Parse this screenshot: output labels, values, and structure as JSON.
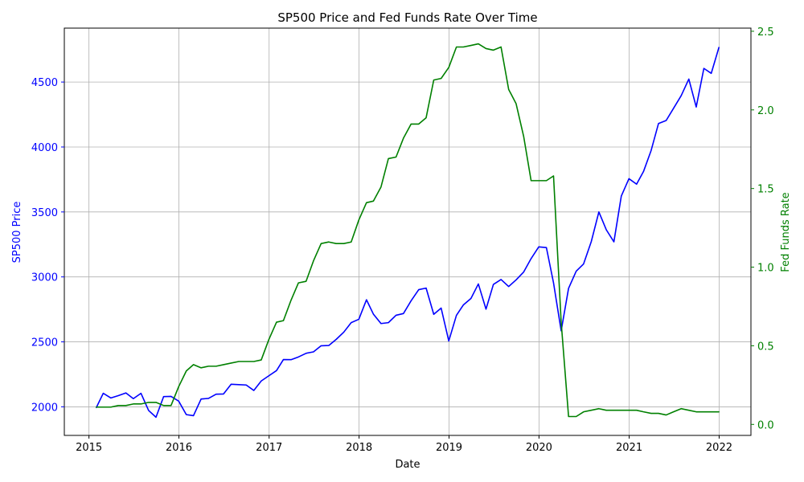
{
  "chart_data": {
    "type": "line",
    "title": "SP500 Price and Fed Funds Rate Over Time",
    "xlabel": "Date",
    "ylabel_left": "SP500 Price",
    "ylabel_right": "Fed Funds Rate",
    "xlim": [
      "2014-09-23",
      "2022-05-10"
    ],
    "ylim_left": [
      1780,
      4915
    ],
    "ylim_right": [
      -0.07,
      2.52
    ],
    "x_ticks": [
      "2015",
      "2016",
      "2017",
      "2018",
      "2019",
      "2020",
      "2021",
      "2022"
    ],
    "y_ticks_left": [
      2000,
      2500,
      3000,
      3500,
      4000,
      4500
    ],
    "y_ticks_right": [
      0.0,
      0.5,
      1.0,
      1.5,
      2.0,
      2.5
    ],
    "y_tick_labels_right": [
      "0.0",
      "0.5",
      "1.0",
      "1.5",
      "2.0",
      "2.5"
    ],
    "grid": true,
    "colors": {
      "sp500": "#0000ff",
      "fed": "#008000",
      "left_axis": "#0000ff",
      "right_axis": "#008000",
      "grid": "#b0b0b0"
    },
    "x": [
      "2015-01-31",
      "2015-02-28",
      "2015-03-31",
      "2015-04-30",
      "2015-05-31",
      "2015-06-30",
      "2015-07-31",
      "2015-08-31",
      "2015-09-30",
      "2015-10-31",
      "2015-11-30",
      "2015-12-31",
      "2016-01-31",
      "2016-02-29",
      "2016-03-31",
      "2016-04-30",
      "2016-05-31",
      "2016-06-30",
      "2016-07-31",
      "2016-08-31",
      "2016-09-30",
      "2016-10-31",
      "2016-11-30",
      "2016-12-31",
      "2017-01-31",
      "2017-02-28",
      "2017-03-31",
      "2017-04-30",
      "2017-05-31",
      "2017-06-30",
      "2017-07-31",
      "2017-08-31",
      "2017-09-30",
      "2017-10-31",
      "2017-11-30",
      "2017-12-31",
      "2018-01-31",
      "2018-02-28",
      "2018-03-31",
      "2018-04-30",
      "2018-05-31",
      "2018-06-30",
      "2018-07-31",
      "2018-08-31",
      "2018-09-30",
      "2018-10-31",
      "2018-11-30",
      "2018-12-31",
      "2019-01-31",
      "2019-02-28",
      "2019-03-31",
      "2019-04-30",
      "2019-05-31",
      "2019-06-30",
      "2019-07-31",
      "2019-08-31",
      "2019-09-30",
      "2019-10-31",
      "2019-11-30",
      "2019-12-31",
      "2020-01-31",
      "2020-02-29",
      "2020-03-31",
      "2020-04-30",
      "2020-05-31",
      "2020-06-30",
      "2020-07-31",
      "2020-08-31",
      "2020-09-30",
      "2020-10-31",
      "2020-11-30",
      "2020-12-31",
      "2021-01-31",
      "2021-02-28",
      "2021-03-31",
      "2021-04-30",
      "2021-05-31",
      "2021-06-30",
      "2021-07-31",
      "2021-08-31",
      "2021-09-30",
      "2021-10-31",
      "2021-11-30",
      "2021-12-31"
    ],
    "series": [
      {
        "name": "SP500 Price",
        "axis": "left",
        "values": [
          1995,
          2104,
          2068,
          2086,
          2107,
          2063,
          2104,
          1972,
          1920,
          2079,
          2080,
          2044,
          1940,
          1932,
          2060,
          2065,
          2097,
          2099,
          2174,
          2171,
          2168,
          2126,
          2199,
          2239,
          2279,
          2364,
          2363,
          2384,
          2412,
          2423,
          2470,
          2472,
          2519,
          2575,
          2648,
          2674,
          2824,
          2714,
          2641,
          2648,
          2705,
          2718,
          2816,
          2902,
          2914,
          2712,
          2760,
          2507,
          2704,
          2784,
          2834,
          2946,
          2752,
          2942,
          2980,
          2926,
          2977,
          3038,
          3141,
          3231,
          3226,
          2954,
          2585,
          2912,
          3044,
          3100,
          3271,
          3500,
          3363,
          3270,
          3622,
          3756,
          3714,
          3811,
          3973,
          4181,
          4204,
          4298,
          4395,
          4523,
          4308,
          4605,
          4567,
          4766
        ]
      },
      {
        "name": "Fed Funds Rate",
        "axis": "right",
        "values": [
          0.11,
          0.11,
          0.11,
          0.12,
          0.12,
          0.13,
          0.13,
          0.14,
          0.14,
          0.12,
          0.12,
          0.24,
          0.34,
          0.38,
          0.36,
          0.37,
          0.37,
          0.38,
          0.39,
          0.4,
          0.4,
          0.4,
          0.41,
          0.54,
          0.65,
          0.66,
          0.79,
          0.9,
          0.91,
          1.04,
          1.15,
          1.16,
          1.15,
          1.15,
          1.16,
          1.3,
          1.41,
          1.42,
          1.51,
          1.69,
          1.7,
          1.82,
          1.91,
          1.91,
          1.95,
          2.19,
          2.2,
          2.27,
          2.4,
          2.4,
          2.41,
          2.42,
          2.39,
          2.38,
          2.4,
          2.13,
          2.04,
          1.83,
          1.55,
          1.55,
          1.55,
          1.58,
          0.65,
          0.05,
          0.05,
          0.08,
          0.09,
          0.1,
          0.09,
          0.09,
          0.09,
          0.09,
          0.09,
          0.08,
          0.07,
          0.07,
          0.06,
          0.08,
          0.1,
          0.09,
          0.08,
          0.08,
          0.08,
          0.08
        ]
      }
    ]
  }
}
